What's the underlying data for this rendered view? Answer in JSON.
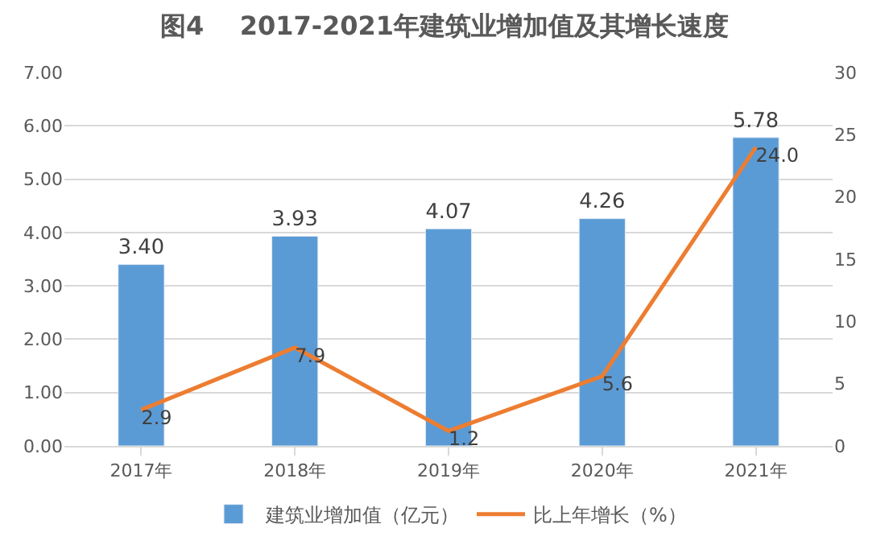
{
  "chart_data": {
    "type": "bar",
    "title": "图4    2017-2021年建筑业增加值及其增长速度",
    "categories": [
      "2017年",
      "2018年",
      "2019年",
      "2020年",
      "2021年"
    ],
    "series": [
      {
        "name": "建筑业增加值（亿元）",
        "color": "#5b9bd5",
        "values": [
          3.4,
          3.93,
          4.07,
          4.26,
          5.78
        ],
        "value_labels": [
          "3.40",
          "3.93",
          "4.07",
          "4.26",
          "5.78"
        ]
      },
      {
        "name": "比上年增长（%）",
        "type": "line",
        "axis": "y2",
        "color": "#ed7d31",
        "values": [
          2.9,
          7.9,
          1.2,
          5.6,
          24.0
        ],
        "value_labels": [
          "2.9",
          "7.9",
          "1.2",
          "5.6",
          "24.0"
        ]
      }
    ],
    "ylim": [
      0,
      7
    ],
    "yticks": [
      {
        "value": 0,
        "label": "0.00"
      },
      {
        "value": 1,
        "label": "1.00"
      },
      {
        "value": 2,
        "label": "2.00"
      },
      {
        "value": 3,
        "label": "3.00"
      },
      {
        "value": 4,
        "label": "4.00"
      },
      {
        "value": 5,
        "label": "5.00"
      },
      {
        "value": 6,
        "label": "6.00"
      },
      {
        "value": 7,
        "label": "7.00"
      }
    ],
    "y2lim": [
      0,
      30
    ],
    "y2ticks": [
      0,
      5,
      10,
      15,
      20,
      25,
      30
    ],
    "grid": "y",
    "legend": "bottom",
    "marker": "none",
    "line_style": "solid"
  }
}
